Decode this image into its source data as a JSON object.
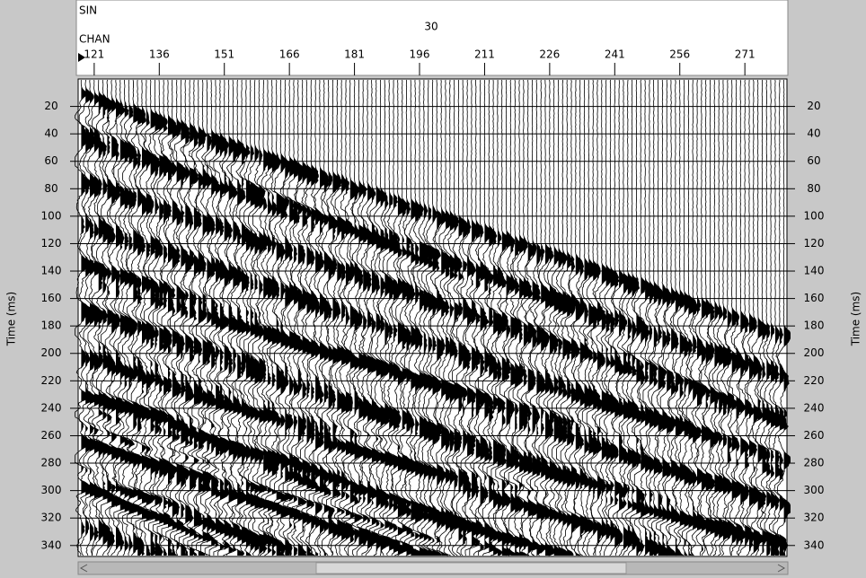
{
  "chart_data": {
    "type": "wiggle",
    "top_label": "SIN",
    "top_value": 30,
    "xlabel": "CHAN",
    "ylabel": "Time (ms)",
    "xlim": [
      117.3,
      280.7
    ],
    "xticks": [
      121,
      136,
      151,
      166,
      181,
      196,
      211,
      226,
      241,
      256,
      271
    ],
    "ylim": [
      0,
      348
    ],
    "yticks": [
      20,
      40,
      60,
      80,
      100,
      120,
      140,
      160,
      180,
      200,
      220,
      240,
      260,
      280,
      300,
      320,
      340
    ],
    "grid": true
  }
}
